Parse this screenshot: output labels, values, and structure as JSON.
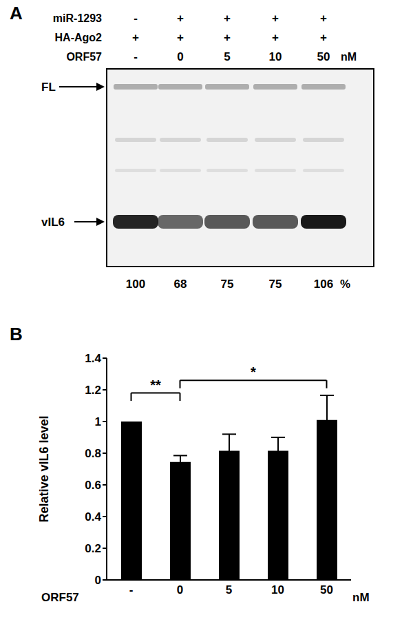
{
  "panel_a": {
    "label": "A",
    "rows": [
      {
        "name": "miR-1293",
        "values": [
          "-",
          "+",
          "+",
          "+",
          "+"
        ]
      },
      {
        "name": "HA-Ago2",
        "values": [
          "+",
          "+",
          "+",
          "+",
          "+"
        ]
      },
      {
        "name": "ORF57",
        "values": [
          "-",
          "0",
          "5",
          "10",
          "50"
        ],
        "unit": "nM"
      }
    ],
    "bands": [
      "FL",
      "vIL6"
    ],
    "percent": [
      100,
      68,
      75,
      75,
      106
    ],
    "percent_unit": "%"
  },
  "chart_data": {
    "type": "bar",
    "panel_label": "B",
    "ylabel": "Relative vIL6 level",
    "xlabel": "ORF57",
    "x_unit": "nM",
    "categories": [
      "-",
      "0",
      "5",
      "10",
      "50"
    ],
    "values": [
      1.0,
      0.745,
      0.815,
      0.815,
      1.01
    ],
    "errors": [
      0,
      0.04,
      0.105,
      0.085,
      0.155
    ],
    "color": "#000000",
    "ylim": [
      0,
      1.4
    ],
    "yticks": [
      0,
      0.2,
      0.4,
      0.6,
      0.8,
      1,
      1.2,
      1.4
    ],
    "annotations": [
      {
        "text": "**",
        "from": "-",
        "to": "0",
        "y": 1.18
      },
      {
        "text": "*",
        "from": "0",
        "to": "50",
        "y": 1.26
      }
    ]
  }
}
